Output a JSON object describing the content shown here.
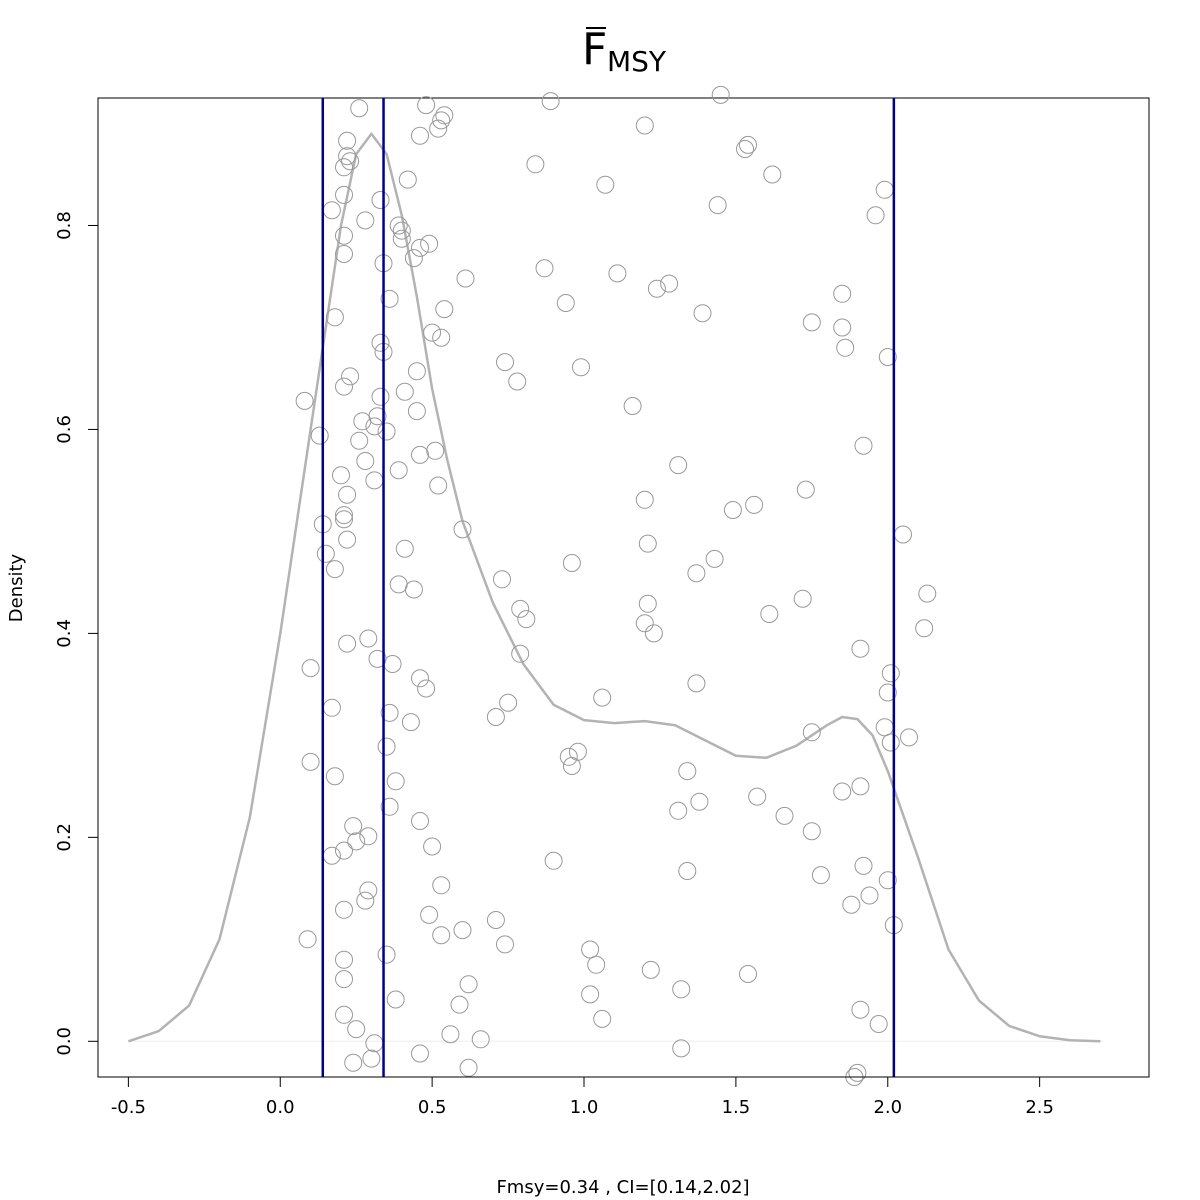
{
  "chart_data": {
    "type": "scatter",
    "title_main": "F",
    "title_sub": "MSY",
    "title_has_overbar": true,
    "xlabel": "Fmsy=0.34 , CI=[0.14,2.02]",
    "ylabel": "Density",
    "xlim": [
      -0.6,
      2.86
    ],
    "ylim": [
      -0.035,
      0.925
    ],
    "x_ticks": [
      -0.5,
      0.0,
      0.5,
      1.0,
      1.5,
      2.0,
      2.5
    ],
    "x_tick_labels": [
      "-0.5",
      "0.0",
      "0.5",
      "1.0",
      "1.5",
      "2.0",
      "2.5"
    ],
    "y_ticks": [
      0.0,
      0.2,
      0.4,
      0.6,
      0.8
    ],
    "y_tick_labels": [
      "0.0",
      "0.2",
      "0.4",
      "0.6",
      "0.8"
    ],
    "grid": false,
    "colors": {
      "density_line": "#b3b3b3",
      "points": "#999999",
      "vlines": "#00008b",
      "zero_line": "#eeeeee"
    },
    "vertical_lines": [
      0.14,
      0.34,
      2.02
    ],
    "density_curve": {
      "x": [
        -0.5,
        -0.4,
        -0.3,
        -0.2,
        -0.1,
        0.0,
        0.1,
        0.2,
        0.25,
        0.3,
        0.35,
        0.4,
        0.45,
        0.5,
        0.55,
        0.6,
        0.7,
        0.8,
        0.9,
        1.0,
        1.1,
        1.2,
        1.3,
        1.4,
        1.5,
        1.6,
        1.7,
        1.8,
        1.85,
        1.9,
        1.95,
        2.0,
        2.1,
        2.2,
        2.3,
        2.4,
        2.5,
        2.6,
        2.7
      ],
      "y": [
        0.0,
        0.01,
        0.035,
        0.1,
        0.22,
        0.4,
        0.6,
        0.8,
        0.87,
        0.89,
        0.87,
        0.81,
        0.73,
        0.64,
        0.57,
        0.51,
        0.43,
        0.37,
        0.33,
        0.315,
        0.312,
        0.314,
        0.31,
        0.295,
        0.28,
        0.278,
        0.29,
        0.31,
        0.318,
        0.316,
        0.3,
        0.265,
        0.18,
        0.09,
        0.04,
        0.015,
        0.005,
        0.001,
        0.0
      ]
    },
    "points": [
      [
        0.26,
        0.915
      ],
      [
        0.48,
        0.918
      ],
      [
        0.54,
        0.908
      ],
      [
        0.53,
        0.903
      ],
      [
        0.89,
        0.922
      ],
      [
        1.45,
        0.928
      ],
      [
        0.22,
        0.883
      ],
      [
        0.46,
        0.888
      ],
      [
        0.52,
        0.895
      ],
      [
        1.2,
        0.898
      ],
      [
        1.53,
        0.875
      ],
      [
        1.54,
        0.879
      ],
      [
        0.22,
        0.868
      ],
      [
        0.23,
        0.863
      ],
      [
        0.21,
        0.857
      ],
      [
        0.84,
        0.86
      ],
      [
        1.62,
        0.85
      ],
      [
        0.42,
        0.845
      ],
      [
        1.07,
        0.84
      ],
      [
        1.99,
        0.835
      ],
      [
        0.21,
        0.83
      ],
      [
        0.33,
        0.825
      ],
      [
        1.44,
        0.82
      ],
      [
        0.17,
        0.815
      ],
      [
        1.96,
        0.81
      ],
      [
        0.28,
        0.805
      ],
      [
        0.39,
        0.8
      ],
      [
        0.4,
        0.795
      ],
      [
        0.21,
        0.79
      ],
      [
        0.4,
        0.787
      ],
      [
        0.49,
        0.782
      ],
      [
        0.46,
        0.778
      ],
      [
        0.21,
        0.772
      ],
      [
        0.44,
        0.768
      ],
      [
        0.34,
        0.763
      ],
      [
        0.87,
        0.758
      ],
      [
        1.11,
        0.753
      ],
      [
        0.61,
        0.748
      ],
      [
        1.28,
        0.743
      ],
      [
        1.24,
        0.738
      ],
      [
        1.85,
        0.733
      ],
      [
        0.36,
        0.728
      ],
      [
        0.94,
        0.724
      ],
      [
        0.54,
        0.718
      ],
      [
        1.39,
        0.714
      ],
      [
        0.18,
        0.71
      ],
      [
        1.75,
        0.705
      ],
      [
        1.85,
        0.7
      ],
      [
        0.5,
        0.695
      ],
      [
        0.53,
        0.69
      ],
      [
        0.33,
        0.685
      ],
      [
        1.86,
        0.68
      ],
      [
        0.34,
        0.676
      ],
      [
        2.0,
        0.671
      ],
      [
        0.74,
        0.666
      ],
      [
        0.99,
        0.661
      ],
      [
        0.45,
        0.657
      ],
      [
        0.23,
        0.652
      ],
      [
        0.78,
        0.647
      ],
      [
        0.21,
        0.642
      ],
      [
        0.41,
        0.637
      ],
      [
        0.33,
        0.632
      ],
      [
        0.08,
        0.628
      ],
      [
        1.16,
        0.623
      ],
      [
        0.45,
        0.618
      ],
      [
        0.32,
        0.613
      ],
      [
        0.27,
        0.608
      ],
      [
        0.31,
        0.603
      ],
      [
        0.35,
        0.598
      ],
      [
        0.13,
        0.594
      ],
      [
        0.26,
        0.589
      ],
      [
        1.92,
        0.584
      ],
      [
        0.51,
        0.579
      ],
      [
        0.46,
        0.575
      ],
      [
        0.28,
        0.569
      ],
      [
        1.31,
        0.565
      ],
      [
        0.39,
        0.56
      ],
      [
        0.2,
        0.555
      ],
      [
        0.31,
        0.55
      ],
      [
        0.52,
        0.545
      ],
      [
        1.73,
        0.541
      ],
      [
        0.22,
        0.536
      ],
      [
        1.2,
        0.531
      ],
      [
        1.56,
        0.526
      ],
      [
        1.49,
        0.521
      ],
      [
        0.21,
        0.516
      ],
      [
        0.21,
        0.512
      ],
      [
        0.14,
        0.507
      ],
      [
        0.6,
        0.502
      ],
      [
        2.05,
        0.497
      ],
      [
        0.22,
        0.492
      ],
      [
        1.21,
        0.488
      ],
      [
        0.41,
        0.483
      ],
      [
        0.15,
        0.478
      ],
      [
        1.43,
        0.473
      ],
      [
        0.96,
        0.469
      ],
      [
        0.18,
        0.463
      ],
      [
        1.37,
        0.459
      ],
      [
        0.73,
        0.453
      ],
      [
        0.39,
        0.448
      ],
      [
        0.44,
        0.443
      ],
      [
        2.13,
        0.439
      ],
      [
        1.72,
        0.434
      ],
      [
        1.21,
        0.429
      ],
      [
        0.79,
        0.424
      ],
      [
        1.61,
        0.419
      ],
      [
        0.81,
        0.414
      ],
      [
        1.2,
        0.41
      ],
      [
        2.12,
        0.405
      ],
      [
        1.23,
        0.4
      ],
      [
        0.29,
        0.395
      ],
      [
        0.22,
        0.39
      ],
      [
        1.91,
        0.385
      ],
      [
        0.79,
        0.38
      ],
      [
        0.32,
        0.375
      ],
      [
        0.37,
        0.37
      ],
      [
        0.1,
        0.366
      ],
      [
        2.01,
        0.361
      ],
      [
        0.46,
        0.356
      ],
      [
        1.37,
        0.351
      ],
      [
        0.48,
        0.346
      ],
      [
        2.0,
        0.342
      ],
      [
        1.06,
        0.337
      ],
      [
        0.75,
        0.332
      ],
      [
        0.17,
        0.327
      ],
      [
        0.36,
        0.322
      ],
      [
        0.71,
        0.318
      ],
      [
        0.43,
        0.313
      ],
      [
        1.99,
        0.308
      ],
      [
        1.75,
        0.303
      ],
      [
        2.07,
        0.298
      ],
      [
        2.01,
        0.293
      ],
      [
        0.35,
        0.289
      ],
      [
        0.98,
        0.284
      ],
      [
        0.95,
        0.279
      ],
      [
        0.1,
        0.274
      ],
      [
        0.96,
        0.27
      ],
      [
        1.34,
        0.265
      ],
      [
        0.18,
        0.26
      ],
      [
        0.38,
        0.255
      ],
      [
        1.91,
        0.25
      ],
      [
        1.85,
        0.245
      ],
      [
        1.57,
        0.24
      ],
      [
        1.38,
        0.235
      ],
      [
        0.36,
        0.23
      ],
      [
        1.31,
        0.226
      ],
      [
        1.66,
        0.221
      ],
      [
        0.46,
        0.216
      ],
      [
        0.24,
        0.211
      ],
      [
        1.75,
        0.206
      ],
      [
        0.29,
        0.201
      ],
      [
        0.25,
        0.196
      ],
      [
        0.5,
        0.191
      ],
      [
        0.21,
        0.187
      ],
      [
        0.17,
        0.182
      ],
      [
        0.9,
        0.177
      ],
      [
        1.92,
        0.172
      ],
      [
        1.34,
        0.167
      ],
      [
        1.78,
        0.163
      ],
      [
        2.0,
        0.158
      ],
      [
        0.53,
        0.153
      ],
      [
        0.29,
        0.148
      ],
      [
        1.94,
        0.143
      ],
      [
        0.28,
        0.138
      ],
      [
        1.88,
        0.134
      ],
      [
        0.21,
        0.129
      ],
      [
        0.49,
        0.124
      ],
      [
        0.71,
        0.119
      ],
      [
        2.02,
        0.114
      ],
      [
        0.6,
        0.109
      ],
      [
        0.53,
        0.104
      ],
      [
        0.09,
        0.1
      ],
      [
        0.74,
        0.095
      ],
      [
        1.02,
        0.09
      ],
      [
        0.35,
        0.085
      ],
      [
        0.21,
        0.08
      ],
      [
        1.04,
        0.075
      ],
      [
        1.22,
        0.07
      ],
      [
        1.54,
        0.066
      ],
      [
        0.21,
        0.061
      ],
      [
        0.62,
        0.056
      ],
      [
        1.32,
        0.051
      ],
      [
        1.02,
        0.046
      ],
      [
        0.38,
        0.041
      ],
      [
        0.59,
        0.036
      ],
      [
        1.91,
        0.031
      ],
      [
        0.21,
        0.026
      ],
      [
        1.06,
        0.022
      ],
      [
        1.97,
        0.017
      ],
      [
        0.25,
        0.012
      ],
      [
        0.56,
        0.007
      ],
      [
        0.66,
        0.002
      ],
      [
        0.31,
        -0.002
      ],
      [
        1.32,
        -0.007
      ],
      [
        0.46,
        -0.012
      ],
      [
        0.3,
        -0.017
      ],
      [
        0.24,
        -0.021
      ],
      [
        0.62,
        -0.026
      ],
      [
        1.9,
        -0.031
      ],
      [
        1.89,
        -0.035
      ]
    ]
  }
}
